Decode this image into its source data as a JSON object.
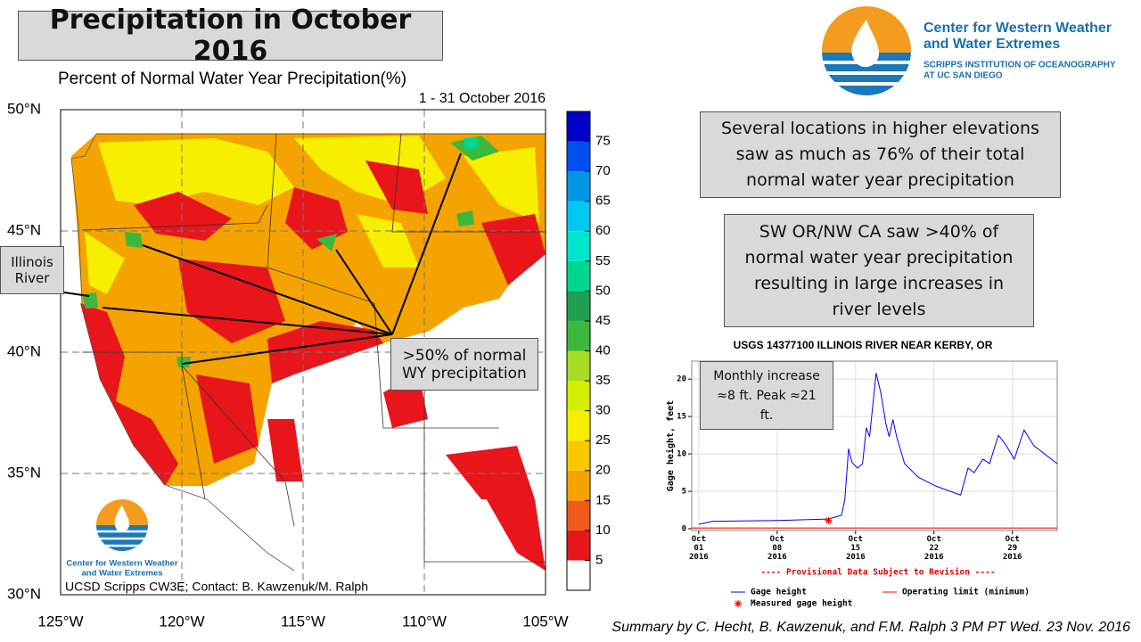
{
  "slide_title": "Precipitation in October 2016",
  "map": {
    "title": "Percent of Normal Water Year Precipitation(%)",
    "period": "1 - 31 October 2016",
    "lat_labels": [
      "50°N",
      "45°N",
      "40°N",
      "35°N",
      "30°N"
    ],
    "lon_labels": [
      "125°W",
      "120°W",
      "115°W",
      "110°W",
      "105°W"
    ],
    "credit": "UCSD Scripps CW3E; Contact: B. Kawzenuk/M. Ralph",
    "colorbar": {
      "range": [
        0,
        80
      ],
      "ticks": [
        5,
        10,
        15,
        20,
        25,
        30,
        35,
        40,
        45,
        50,
        55,
        60,
        65,
        70,
        75
      ],
      "colors": [
        "#ffffff",
        "#e8151b",
        "#f05a1a",
        "#f5a300",
        "#f9c800",
        "#f7ee00",
        "#d4ee00",
        "#a6dd22",
        "#3cb83c",
        "#1ea050",
        "#00d690",
        "#00e6cc",
        "#00c8f0",
        "#0096e6",
        "#0050f0",
        "#0000c8"
      ]
    }
  },
  "callouts": {
    "illinois": "Illinois River",
    "wy": ">50% of normal WY precipitation",
    "elevations": "Several locations in higher elevations saw as much as 76% of their total normal water year precipitation",
    "sw": "SW OR/NW CA saw >40% of normal water year precipitation resulting in large increases in river levels",
    "monthly": "Monthly increase ≈8 ft. Peak ≈21 ft."
  },
  "logo": {
    "name_lines": [
      "Center for Western Weather",
      "and Water Extremes"
    ],
    "subtitle_lines": [
      "SCRIPPS INSTITUTION OF OCEANOGRAPHY",
      "AT UC SAN DIEGO"
    ]
  },
  "summary": "Summary by C. Hecht, B. Kawzenuk, and F.M. Ralph 3 PM PT Wed. 23 Nov. 2016",
  "chart_data": {
    "type": "line",
    "title": "USGS 14377100 ILLINOIS RIVER NEAR KERBY, OR",
    "y_label": "Gage height, feet",
    "note": "---- Provisional Data Subject to Revision ----",
    "xlim": [
      "2016-09-30T09:00",
      "2016-11-02T00:00"
    ],
    "xticks": [
      {
        "value": "2016-10-01T00:00",
        "label": "Oct 01 2016"
      },
      {
        "value": "2016-10-08T00:00",
        "label": "Oct 08 2016"
      },
      {
        "value": "2016-10-15T00:00",
        "label": "Oct 15 2016"
      },
      {
        "value": "2016-10-22T00:00",
        "label": "Oct 22 2016"
      },
      {
        "value": "2016-10-29T00:00",
        "label": "Oct 29 2016"
      }
    ],
    "ylim": [
      -0.24,
      22.4
    ],
    "yticks": [
      0,
      5,
      10,
      15,
      20
    ],
    "grid": true,
    "series": [
      {
        "name": "Gage height",
        "color": "#0000ff",
        "x": [
          "2016-10-01T00:00",
          "2016-10-02T06:00",
          "2016-10-08T00:00",
          "2016-10-12T14:00",
          "2016-10-13T18:00",
          "2016-10-14T01:00",
          "2016-10-14T09:00",
          "2016-10-14T16:00",
          "2016-10-15T04:00",
          "2016-10-15T15:00",
          "2016-10-15T23:00",
          "2016-10-16T06:00",
          "2016-10-16T20:00",
          "2016-10-17T06:00",
          "2016-10-17T17:00",
          "2016-10-18T00:00",
          "2016-10-18T08:00",
          "2016-10-18T16:00",
          "2016-10-19T09:00",
          "2016-10-20T14:00",
          "2016-10-22T04:00",
          "2016-10-24T09:00",
          "2016-10-25T01:00",
          "2016-10-25T14:00",
          "2016-10-26T09:00",
          "2016-10-26T23:00",
          "2016-10-27T18:00",
          "2016-10-28T09:00",
          "2016-10-29T04:00",
          "2016-10-30T01:00",
          "2016-10-30T22:00",
          "2016-11-02T00:00"
        ],
        "values": [
          0.6,
          1.0,
          1.1,
          1.3,
          1.8,
          3.9,
          10.7,
          8.9,
          8.1,
          8.7,
          13.5,
          12.3,
          20.8,
          18.2,
          14.0,
          12.3,
          14.6,
          12.3,
          8.7,
          6.9,
          5.7,
          4.5,
          8.1,
          7.5,
          9.3,
          8.7,
          12.5,
          11.3,
          9.3,
          13.2,
          11.1,
          8.7
        ]
      },
      {
        "name": "Operating limit (minimum)",
        "color": "#ff0000",
        "x": [
          "2016-09-30T09:00",
          "2016-11-02T00:00"
        ],
        "values": [
          0.1,
          0.1
        ]
      },
      {
        "name": "Measured gage height",
        "color": "#ff0000",
        "x": [
          "2016-10-12T14:00"
        ],
        "values": [
          1.1
        ]
      }
    ]
  }
}
